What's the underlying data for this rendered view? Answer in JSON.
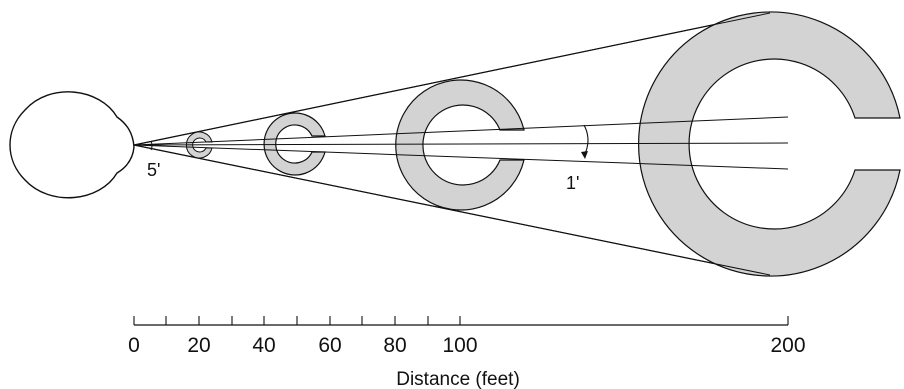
{
  "colors": {
    "stroke": "#111111",
    "ring_fill": "#d3d3d3",
    "background": "#ffffff"
  },
  "annotations": {
    "angle_eye": "5'",
    "angle_gap": "1'"
  },
  "axis": {
    "label": "Distance (feet)",
    "ticks": [
      "0",
      "20",
      "40",
      "60",
      "80",
      "100",
      "200"
    ],
    "minor_tick_values": [
      0,
      10,
      20,
      30,
      40,
      50,
      60,
      70,
      80,
      90,
      100,
      200
    ],
    "range": [
      0,
      200
    ]
  },
  "optotypes": [
    {
      "distance_feet": 20
    },
    {
      "distance_feet": 40
    },
    {
      "distance_feet": 100
    },
    {
      "distance_feet": 200
    }
  ]
}
